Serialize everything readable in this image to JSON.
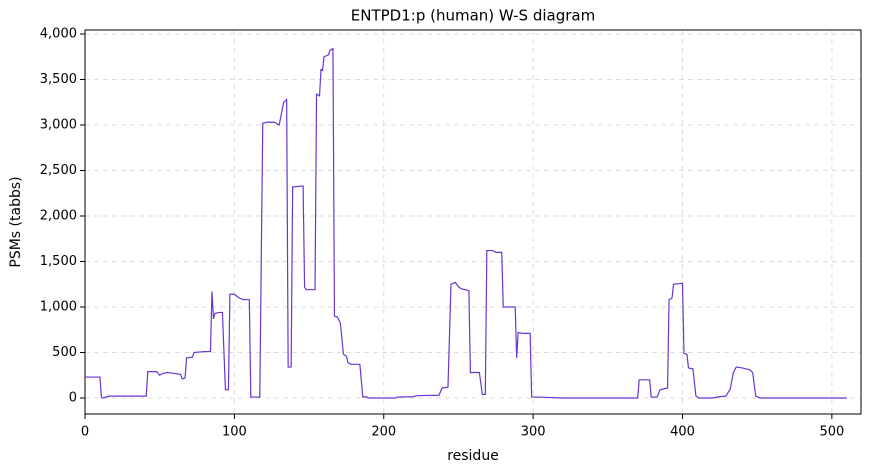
{
  "chart_data": {
    "type": "line",
    "title": "ENTPD1:p (human) W-S diagram",
    "x_label": "residue",
    "y_label": "PSMs (tabbs)",
    "xlim": [
      0,
      519.5
    ],
    "ylim": [
      -176,
      4044
    ],
    "xticks": [
      0,
      100,
      200,
      300,
      400,
      500
    ],
    "yticks": [
      0,
      {
        "value": 500,
        "label": "500"
      },
      {
        "value": 1000,
        "label": "1,000"
      },
      {
        "value": 1500,
        "label": "1,500"
      },
      {
        "value": 2000,
        "label": "2,000"
      },
      {
        "value": 2500,
        "label": "2,500"
      },
      {
        "value": 3000,
        "label": "3,000"
      },
      {
        "value": 3500,
        "label": "3,500"
      },
      {
        "value": 4000,
        "label": "4,000"
      }
    ],
    "grid": true,
    "series": [
      {
        "color": "#6a35d0",
        "x": [
          0,
          10,
          11,
          12,
          16,
          41,
          42,
          48,
          50,
          52,
          55,
          60,
          64,
          65,
          67,
          68,
          72,
          73,
          80,
          84,
          85,
          86,
          87,
          90,
          92,
          94,
          96,
          97,
          100,
          103,
          106,
          110,
          111,
          117,
          119,
          122,
          127,
          130,
          133,
          135,
          136,
          138,
          139,
          146,
          147,
          148,
          154,
          155,
          157,
          158,
          159,
          160,
          163,
          164,
          166,
          167,
          169,
          171,
          173,
          175,
          176,
          178,
          184,
          186,
          188,
          190,
          200,
          208,
          209,
          220,
          222,
          237,
          239,
          243,
          245,
          248,
          250,
          252,
          257,
          258,
          264,
          266,
          268,
          269,
          273,
          275,
          279,
          280,
          288,
          289,
          290,
          293,
          298,
          299,
          303,
          320,
          370,
          371,
          378,
          379,
          383,
          385,
          390,
          391,
          393,
          394,
          400,
          401,
          403,
          404,
          407,
          409,
          411,
          420,
          425,
          429,
          432,
          434,
          436,
          440,
          445,
          447,
          449,
          452,
          510
        ],
        "values": [
          230,
          230,
          5,
          0,
          20,
          20,
          290,
          290,
          250,
          270,
          280,
          270,
          260,
          210,
          220,
          440,
          450,
          500,
          510,
          510,
          1170,
          870,
          930,
          940,
          940,
          90,
          90,
          1140,
          1140,
          1100,
          1080,
          1080,
          10,
          10,
          3020,
          3030,
          3030,
          3000,
          3250,
          3280,
          340,
          340,
          2320,
          2330,
          1220,
          1190,
          1190,
          3340,
          3320,
          3610,
          3600,
          3750,
          3770,
          3820,
          3840,
          900,
          890,
          820,
          480,
          460,
          390,
          370,
          370,
          10,
          15,
          0,
          0,
          0,
          10,
          15,
          25,
          30,
          110,
          120,
          1250,
          1270,
          1220,
          1200,
          1180,
          280,
          280,
          40,
          40,
          1620,
          1620,
          1600,
          1600,
          1000,
          1000,
          440,
          720,
          710,
          710,
          10,
          10,
          0,
          0,
          200,
          200,
          10,
          10,
          90,
          110,
          1080,
          1100,
          1250,
          1260,
          490,
          480,
          330,
          320,
          20,
          0,
          0,
          15,
          20,
          100,
          280,
          340,
          330,
          310,
          280,
          20,
          0,
          0
        ]
      }
    ]
  }
}
